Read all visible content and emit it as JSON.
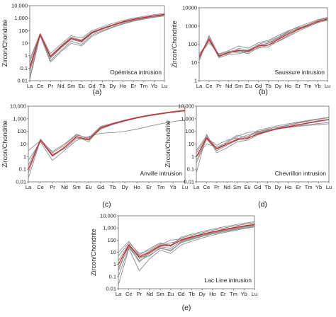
{
  "chart_data": [
    {
      "type": "line",
      "panel_caption": "(a)",
      "annotation": "Opémisca intrusion",
      "ylabel": "Zircon/Chondrite",
      "yscale": "log",
      "ylim": [
        0.01,
        10000
      ],
      "y_tick_labels": [
        "0.01",
        "0.1",
        "1",
        "10",
        "100",
        "1,000",
        "10,000"
      ],
      "categories": [
        "La",
        "Ce",
        "Pr",
        "Nd",
        "Sm",
        "Eu",
        "Gd",
        "Tb",
        "Dy",
        "Ho",
        "Er",
        "Tm",
        "Yb",
        "Lu"
      ],
      "series": [
        {
          "values": [
            0.05,
            50,
            0.6,
            4,
            20,
            12,
            60,
            130,
            250,
            450,
            700,
            1000,
            1400,
            1800
          ]
        },
        {
          "values": [
            0.3,
            55,
            1.0,
            6,
            30,
            18,
            80,
            160,
            300,
            550,
            850,
            1200,
            1600,
            2100
          ]
        },
        {
          "values": [
            0.02,
            45,
            0.4,
            2.5,
            14,
            8,
            45,
            100,
            200,
            380,
            620,
            900,
            1250,
            1600
          ]
        },
        {
          "values": [
            0.5,
            60,
            1.5,
            8,
            40,
            25,
            100,
            200,
            380,
            650,
            1000,
            1400,
            1900,
            2400
          ]
        },
        {
          "values": [
            0.15,
            52,
            0.8,
            5,
            25,
            15,
            70,
            140,
            270,
            500,
            780,
            1100,
            1500,
            1950
          ]
        },
        {
          "values": [
            0.012,
            40,
            0.3,
            2,
            10,
            6,
            35,
            85,
            180,
            340,
            560,
            830,
            1150,
            1500
          ]
        },
        {
          "values": [
            0.1,
            50,
            0.9,
            5.5,
            26,
            16,
            75,
            150,
            290,
            520,
            800,
            1150,
            1550,
            2000
          ]
        }
      ],
      "average": [
        0.1,
        52,
        0.8,
        4.8,
        24,
        14,
        68,
        142,
        275,
        505,
        785,
        1120,
        1530,
        1960
      ]
    },
    {
      "type": "line",
      "panel_caption": "(b)",
      "annotation": "Saussure intrusion",
      "ylabel": "Zircon/Chondrite",
      "yscale": "log",
      "ylim": [
        1,
        10000
      ],
      "y_tick_labels": [
        "1",
        "10",
        "100",
        "1000",
        "10000"
      ],
      "categories": [
        "La",
        "Ce",
        "Pr",
        "Nd",
        "Sm",
        "Eu",
        "Gd",
        "Tb",
        "Dy",
        "Ho",
        "Er",
        "Tm",
        "Yb",
        "Lu"
      ],
      "series": [
        {
          "values": [
            18,
            180,
            20,
            35,
            40,
            30,
            70,
            70,
            150,
            300,
            600,
            1000,
            1800,
            2500
          ]
        },
        {
          "values": [
            12,
            300,
            25,
            30,
            60,
            45,
            100,
            140,
            250,
            500,
            900,
            1400,
            2200,
            3000
          ]
        },
        {
          "values": [
            25,
            120,
            30,
            45,
            80,
            60,
            120,
            160,
            300,
            550,
            800,
            1100,
            1600,
            2000
          ]
        },
        {
          "values": [
            15,
            200,
            18,
            28,
            30,
            40,
            60,
            90,
            140,
            260,
            500,
            900,
            1500,
            2200
          ]
        },
        {
          "values": [
            20,
            250,
            22,
            40,
            50,
            35,
            90,
            110,
            200,
            420,
            750,
            1200,
            2000,
            2800
          ]
        },
        {
          "values": [
            30,
            150,
            28,
            38,
            35,
            50,
            80,
            120,
            220,
            450,
            700,
            1050,
            1700,
            2400
          ]
        }
      ],
      "average": [
        20,
        190,
        22,
        35,
        45,
        42,
        80,
        90,
        180,
        360,
        650,
        1050,
        1750,
        2500
      ]
    },
    {
      "type": "line",
      "panel_caption": "(c)",
      "annotation": "Anville intrusion",
      "ylabel": "Zircon/Chondrite",
      "yscale": "log",
      "ylim": [
        0.01,
        10000
      ],
      "y_tick_labels": [
        "0.01",
        "0.1",
        "1",
        "10",
        "100",
        "1,000",
        "10,000"
      ],
      "categories": [
        "La",
        "Ce",
        "Pr",
        "Nd",
        "Sm",
        "Eu",
        "Gd",
        "Tb",
        "Dy",
        "Ho",
        "Er",
        "Tm",
        "Yb",
        "Lu"
      ],
      "series": [
        {
          "values": [
            0.02,
            20,
            1.0,
            5,
            40,
            15,
            200,
            400,
            700,
            1200,
            1800,
            2500,
            3500,
            4500
          ]
        },
        {
          "values": [
            0.05,
            25,
            2,
            8,
            50,
            30,
            250,
            450,
            800,
            1300,
            2000,
            2800,
            3800,
            5000
          ]
        },
        {
          "values": [
            0.5,
            15,
            0.5,
            3,
            20,
            40,
            70,
            80,
            100,
            150,
            250,
            400,
            600,
            800
          ]
        },
        {
          "values": [
            0.2,
            22,
            1.5,
            4,
            30,
            20,
            150,
            350,
            650,
            1100,
            1700,
            2400,
            3300,
            4200
          ]
        },
        {
          "values": [
            3,
            18,
            2.5,
            10,
            60,
            25,
            220,
            420,
            750,
            1250,
            1900,
            2600,
            3600,
            4700
          ]
        }
      ],
      "average": [
        0.1,
        20,
        1.2,
        5.5,
        38,
        22,
        180,
        380,
        700,
        1200,
        1800,
        2500,
        3400,
        4300
      ]
    },
    {
      "type": "line",
      "panel_caption": "(d)",
      "annotation": "Chevrillon intrusion",
      "ylabel": "Zircon/Chondrite",
      "yscale": "log",
      "ylim": [
        0.01,
        10000
      ],
      "y_tick_labels": [
        "0.01",
        "0.1",
        "1",
        "10",
        "100",
        "1,000",
        "10,000"
      ],
      "categories": [
        "La",
        "Ce",
        "Pr",
        "Nd",
        "Sm",
        "Eu",
        "Gd",
        "Tb",
        "Dy",
        "Ho",
        "Er",
        "Tm",
        "Yb",
        "Lu"
      ],
      "series": [
        {
          "values": [
            0.3,
            25,
            3,
            8,
            20,
            40,
            80,
            120,
            180,
            250,
            350,
            500,
            700,
            900
          ]
        },
        {
          "values": [
            0.05,
            60,
            2,
            5,
            15,
            20,
            50,
            100,
            200,
            300,
            450,
            650,
            900,
            1200
          ]
        },
        {
          "values": [
            1,
            10,
            6,
            12,
            40,
            80,
            100,
            130,
            170,
            220,
            280,
            340,
            420,
            500
          ]
        },
        {
          "values": [
            3,
            45,
            4,
            15,
            50,
            30,
            120,
            180,
            280,
            400,
            550,
            750,
            1000,
            1300
          ]
        },
        {
          "values": [
            0.5,
            30,
            8,
            20,
            30,
            25,
            70,
            110,
            160,
            200,
            250,
            300,
            350,
            400
          ]
        },
        {
          "values": [
            2,
            35,
            5,
            10,
            25,
            50,
            90,
            150,
            220,
            320,
            480,
            680,
            950,
            1250
          ]
        }
      ],
      "average": [
        1,
        30,
        4,
        10,
        22,
        28,
        60,
        100,
        160,
        230,
        330,
        460,
        640,
        860
      ]
    },
    {
      "type": "line",
      "panel_caption": "(e)",
      "annotation": "Lac Line intrusion",
      "ylabel": "Zircon/Chondrite",
      "yscale": "log",
      "ylim": [
        0.01,
        10000
      ],
      "y_tick_labels": [
        "0.01",
        "0.1",
        "1",
        "10",
        "100",
        "1,000",
        "10,000"
      ],
      "categories": [
        "La",
        "Ce",
        "Pr",
        "Nd",
        "Sm",
        "Eu",
        "Gd",
        "Tb",
        "Dy",
        "Ho",
        "Er",
        "Tm",
        "Yb",
        "Lu"
      ],
      "series": [
        {
          "values": [
            0.5,
            30,
            3,
            8,
            30,
            20,
            80,
            150,
            250,
            400,
            600,
            900,
            1300,
            1700
          ]
        },
        {
          "values": [
            5,
            60,
            8,
            15,
            50,
            40,
            150,
            250,
            400,
            650,
            950,
            1400,
            2000,
            2600
          ]
        },
        {
          "values": [
            0.02,
            20,
            0.3,
            3,
            15,
            8,
            40,
            80,
            150,
            250,
            400,
            600,
            900,
            1200
          ]
        },
        {
          "values": [
            2,
            45,
            5,
            12,
            40,
            100,
            120,
            200,
            320,
            500,
            750,
            1100,
            1500,
            2000
          ]
        },
        {
          "values": [
            0.1,
            25,
            2,
            6,
            20,
            15,
            60,
            110,
            200,
            320,
            480,
            700,
            1000,
            1300
          ]
        },
        {
          "values": [
            10,
            80,
            6,
            20,
            60,
            30,
            180,
            300,
            500,
            800,
            1200,
            1700,
            2400,
            3200
          ]
        },
        {
          "values": [
            1,
            35,
            1.5,
            10,
            35,
            60,
            90,
            170,
            280,
            450,
            680,
            1000,
            1400,
            1850
          ]
        },
        {
          "values": [
            0.3,
            40,
            4,
            5,
            25,
            12,
            70,
            130,
            220,
            360,
            550,
            800,
            1150,
            1500
          ]
        }
      ],
      "average": [
        1,
        40,
        4,
        10,
        35,
        35,
        100,
        180,
        300,
        480,
        700,
        1050,
        1450,
        1900
      ]
    }
  ]
}
